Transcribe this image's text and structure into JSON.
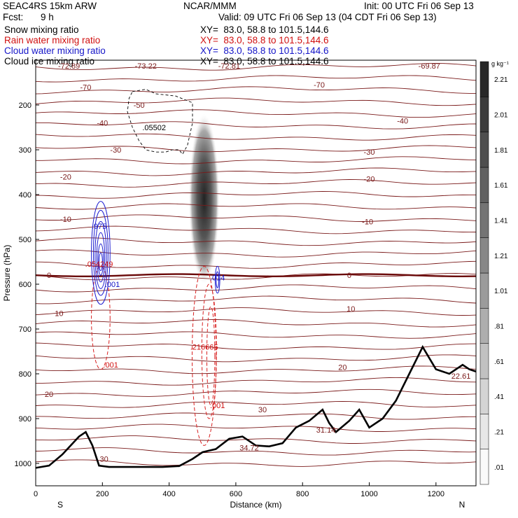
{
  "header": {
    "model": "SEAC4RS 15km ARW",
    "org": "NCAR/MMM",
    "init": "Init: 00 UTC Fri 06 Sep 13",
    "fcst_label": "Fcst:",
    "fcst_value": "9 h",
    "valid": "Valid: 09 UTC Fri 06 Sep 13 (04 CDT Fri 06 Sep 13)"
  },
  "fields": [
    {
      "name": "Snow mixing ratio",
      "xy": "XY=  83.0, 58.8 to 101.5,144.6",
      "color": "#000000"
    },
    {
      "name": "Rain water mixing ratio",
      "xy": "XY=  83.0, 58.8 to 101.5,144.6",
      "color": "#d01010"
    },
    {
      "name": "Cloud water mixing ratio",
      "xy": "XY=  83.0, 58.8 to 101.5,144.6",
      "color": "#1515c8"
    },
    {
      "name": "Cloud ice mixing ratio",
      "xy": "XY=  83.0, 58.8 to 101.5,144.6",
      "color": "#000000"
    }
  ],
  "chart_data": {
    "type": "contour-cross-section",
    "xlabel": "Distance (km)",
    "ylabel": "Pressure (hPa)",
    "xlim": [
      0,
      1320
    ],
    "ylim": [
      1050,
      100
    ],
    "x_ticks": [
      0,
      200,
      400,
      600,
      800,
      1000,
      1200
    ],
    "y_ticks": [
      200,
      300,
      400,
      500,
      600,
      700,
      800,
      900,
      1000
    ],
    "x_end_labels": [
      "S",
      "N"
    ],
    "colorbar": {
      "unit": "g kg⁻¹",
      "ticks": [
        ".01",
        ".21",
        ".41",
        ".61",
        ".81",
        "1.01",
        "1.21",
        "1.41",
        "1.61",
        "1.81",
        "2.01",
        "2.21"
      ],
      "values": [
        0.01,
        0.21,
        0.41,
        0.61,
        0.81,
        1.01,
        1.21,
        1.41,
        1.61,
        1.81,
        2.01,
        2.21
      ]
    },
    "temperature_isotherms_C": [
      {
        "value": -70,
        "labels": [
          {
            "x": 150,
            "p": 160
          },
          {
            "x": 850,
            "p": 155
          }
        ]
      },
      {
        "value": -50,
        "labels": [
          {
            "x": 310,
            "p": 200
          }
        ]
      },
      {
        "value": -40,
        "labels": [
          {
            "x": 200,
            "p": 240
          },
          {
            "x": 1100,
            "p": 235
          }
        ]
      },
      {
        "value": -30,
        "labels": [
          {
            "x": 240,
            "p": 300
          },
          {
            "x": 1000,
            "p": 305
          }
        ]
      },
      {
        "value": -20,
        "labels": [
          {
            "x": 90,
            "p": 360
          },
          {
            "x": 1000,
            "p": 365
          }
        ]
      },
      {
        "value": -10,
        "labels": [
          {
            "x": 90,
            "p": 455
          },
          {
            "x": 995,
            "p": 460
          }
        ]
      },
      {
        "value": 0,
        "labels": [
          {
            "x": 40,
            "p": 580
          },
          {
            "x": 940,
            "p": 580
          }
        ]
      },
      {
        "value": 10,
        "labels": [
          {
            "x": 70,
            "p": 665
          },
          {
            "x": 945,
            "p": 655
          }
        ]
      },
      {
        "value": 20,
        "labels": [
          {
            "x": 40,
            "p": 845
          },
          {
            "x": 920,
            "p": 785
          }
        ]
      },
      {
        "value": 30,
        "labels": [
          {
            "x": 205,
            "p": 990
          },
          {
            "x": 680,
            "p": 880
          }
        ]
      }
    ],
    "top_temperature_labels": [
      {
        "text": "-72.89",
        "x": 100
      },
      {
        "text": "-73.22",
        "x": 330
      },
      {
        "text": "-72.81",
        "x": 580
      },
      {
        "text": "-69.87",
        "x": 1180
      }
    ],
    "maxima_labels": [
      {
        "field": "snow",
        "text": ".05502",
        "x": 355,
        "p": 250
      },
      {
        "field": "cloud_water",
        "text": ".975",
        "x": 190,
        "p": 470
      },
      {
        "field": "cloud_water",
        "text": ".001",
        "x": 230,
        "p": 600
      },
      {
        "field": "cloud_water",
        "text": ".014",
        "x": 545,
        "p": 585
      },
      {
        "field": "rain",
        "text": ".054249",
        "x": 190,
        "p": 555
      },
      {
        "field": "rain",
        "text": ".001",
        "x": 225,
        "p": 780
      },
      {
        "field": "rain",
        "text": ".216665",
        "x": 505,
        "p": 740
      },
      {
        "field": "rain",
        "text": ".001",
        "x": 545,
        "p": 870
      },
      {
        "field": "temperature",
        "text": "34.72",
        "x": 640,
        "p": 965
      },
      {
        "field": "temperature",
        "text": "31.14",
        "x": 870,
        "p": 925
      },
      {
        "field": "temperature",
        "text": "22.61",
        "x": 1275,
        "p": 805
      }
    ],
    "terrain_surface_p": {
      "x": [
        0,
        40,
        80,
        130,
        150,
        170,
        190,
        220,
        300,
        380,
        430,
        470,
        500,
        540,
        580,
        620,
        660,
        700,
        740,
        780,
        820,
        860,
        880,
        900,
        940,
        970,
        1000,
        1040,
        1080,
        1120,
        1160,
        1200,
        1240,
        1280,
        1300,
        1320
      ],
      "p": [
        1010,
        1005,
        980,
        940,
        930,
        960,
        1005,
        1008,
        1008,
        1008,
        1006,
        990,
        975,
        968,
        945,
        940,
        960,
        962,
        955,
        920,
        905,
        880,
        910,
        930,
        905,
        880,
        920,
        900,
        860,
        800,
        740,
        790,
        800,
        780,
        790,
        795
      ]
    },
    "snow_max_location": {
      "x": 505,
      "p_top": 250,
      "p_bottom": 570,
      "max_g_per_kg": 2.3
    }
  }
}
